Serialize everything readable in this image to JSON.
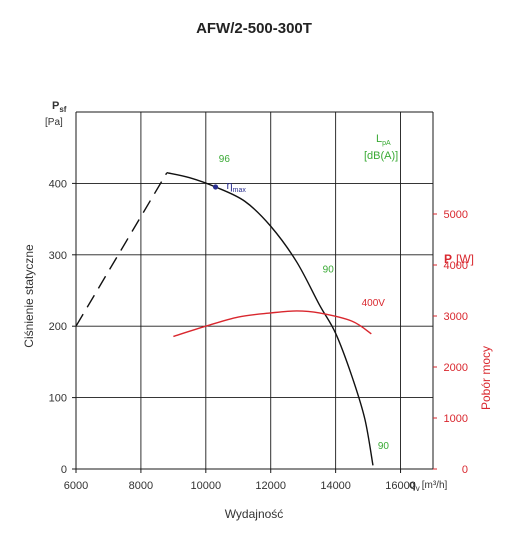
{
  "chart_data": {
    "type": "line",
    "title": "AFW/2-500-300T",
    "xlabel": "Wydajność",
    "x_axis_unit_label": {
      "symbol": "q",
      "subscript": "v",
      "unit": "[m³/h]"
    },
    "ylabel": "Ciśnienie statyczne",
    "y_axis_unit_label": {
      "symbol": "P",
      "subscript": "sf",
      "unit": "[Pa]"
    },
    "y2label": "Pobór mocy",
    "y2_axis_unit_label": {
      "symbol": "P",
      "unit": "[W]"
    },
    "xlim": [
      6000,
      17000
    ],
    "ylim": [
      0,
      500
    ],
    "y2lim": [
      0,
      7000
    ],
    "x_ticks": [
      "6000",
      "8000",
      "10000",
      "12000",
      "14000",
      "16000"
    ],
    "y_ticks": [
      "0",
      "100",
      "200",
      "300",
      "400"
    ],
    "y2_ticks": [
      "0",
      "1000",
      "2000",
      "3000",
      "4000",
      "5000"
    ],
    "grid": true,
    "series": [
      {
        "kind": "pressure-unstable",
        "style": "dashed",
        "color": "#111111",
        "points": [
          [
            6000,
            200
          ],
          [
            8800,
            415
          ]
        ]
      },
      {
        "kind": "pressure",
        "style": "solid",
        "color": "#111111",
        "points": [
          [
            8800,
            415
          ],
          [
            9500,
            408
          ],
          [
            10300,
            395
          ],
          [
            11200,
            375
          ],
          [
            12000,
            340
          ],
          [
            12800,
            290
          ],
          [
            13500,
            230
          ],
          [
            14000,
            190
          ],
          [
            14500,
            130
          ],
          [
            14900,
            70
          ],
          [
            15150,
            5
          ]
        ]
      },
      {
        "name": "400V",
        "axis": "y2",
        "style": "solid",
        "color": "#d9272e",
        "points": [
          [
            9000,
            2600
          ],
          [
            10000,
            2800
          ],
          [
            11000,
            2980
          ],
          [
            12000,
            3060
          ],
          [
            12800,
            3100
          ],
          [
            13500,
            3060
          ],
          [
            14500,
            2900
          ],
          [
            15100,
            2650
          ]
        ]
      }
    ],
    "eta_max": {
      "label": "η",
      "subscript": "max",
      "x": 10300,
      "y": 395,
      "color": "#2a2f8f"
    },
    "sound_level_legend": {
      "symbol": "L",
      "subscript": "pA",
      "unit": "[dB(A)]",
      "color": "#3aaa35"
    },
    "sound_labels": [
      {
        "text": "96",
        "x": 10400,
        "y": 430
      },
      {
        "text": "90",
        "x": 13600,
        "y": 275
      },
      {
        "text": "90",
        "x": 15300,
        "y": 28
      }
    ],
    "power_series_label": {
      "text": "400V",
      "x": 14800,
      "y": 3200
    }
  }
}
